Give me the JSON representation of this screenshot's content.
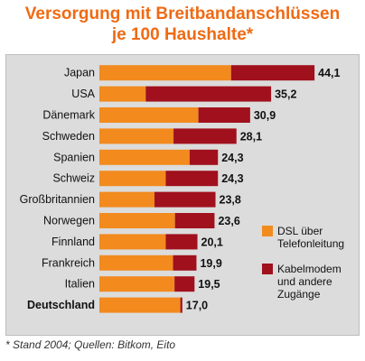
{
  "title_line1": "Versorgung mit Breitbandanschlüssen",
  "title_line2": "je 100 Haushalte*",
  "footnote": "* Stand 2004; Quellen: Bitkom, Eito",
  "colors": {
    "dsl": "#f28a1e",
    "kabel": "#a0101d",
    "title": "#ef6a14",
    "panel": "#dcdcdc"
  },
  "chart_data": {
    "type": "bar",
    "orientation": "horizontal",
    "stacked": true,
    "categories": [
      "Japan",
      "USA",
      "Dänemark",
      "Schweden",
      "Spanien",
      "Schweiz",
      "Großbritannien",
      "Norwegen",
      "Finnland",
      "Frankreich",
      "Italien",
      "Deutschland"
    ],
    "series": [
      {
        "name": "DSL über Telefonleitung",
        "values": [
          27.0,
          9.5,
          20.3,
          15.2,
          18.5,
          13.6,
          11.3,
          15.5,
          13.6,
          15.1,
          15.4,
          16.6
        ]
      },
      {
        "name": "Kabelmodem und andere Zugänge",
        "values": [
          17.1,
          25.7,
          10.6,
          12.9,
          5.8,
          10.7,
          12.5,
          8.1,
          6.5,
          4.8,
          4.1,
          0.4
        ]
      }
    ],
    "totals": [
      "44,1",
      "35,2",
      "30,9",
      "28,1",
      "24,3",
      "24,3",
      "23,8",
      "23,6",
      "20,1",
      "19,9",
      "19,5",
      "17,0"
    ],
    "legend": [
      "DSL über Telefonleitung",
      "Kabelmodem und andere Zugänge"
    ],
    "legend_position": "right",
    "highlight_category": "Deutschland",
    "xlim": [
      0,
      47
    ],
    "grid": false
  }
}
